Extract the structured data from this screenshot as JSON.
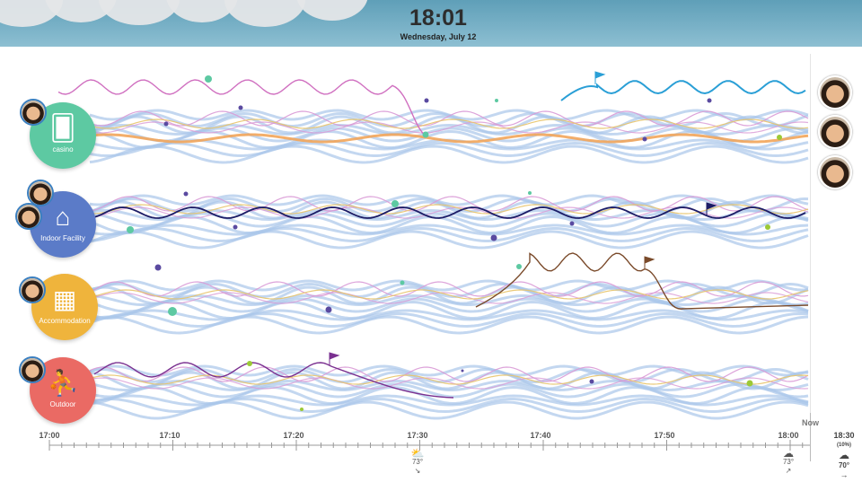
{
  "header": {
    "time": "18:01",
    "date": "Wednesday, July 12"
  },
  "categories": [
    {
      "label": "casino",
      "color": "#5dc9a2",
      "icon": "playing-card-icon"
    },
    {
      "label": "Indoor Facility",
      "color": "#5b7bc8",
      "icon": "house-icon"
    },
    {
      "label": "Accommodation",
      "color": "#efb43c",
      "icon": "building-icon"
    },
    {
      "label": "Outdoor",
      "color": "#ea6a64",
      "icon": "person-outdoor-icon"
    }
  ],
  "axis": {
    "ticks": [
      "17:00",
      "17:10",
      "17:20",
      "17:30",
      "17:40",
      "17:50",
      "18:00"
    ],
    "now_label": "Now"
  },
  "weather": [
    {
      "time": "17:30",
      "icon": "partly-sunny-icon",
      "temp": "73°",
      "wind": "↘"
    },
    {
      "time": "18:00",
      "icon": "cloud-icon",
      "temp": "73°",
      "wind": "↗"
    }
  ],
  "forecast": {
    "time": "18:30",
    "precip": "(10%)",
    "icon": "cloud-icon",
    "temp": "70°",
    "wind": "→"
  },
  "colors": {
    "band": "#a9c6ea",
    "pink": "#d99ad6",
    "yellow": "#e8c46a",
    "orange": "#f2a55a",
    "casino_line": "#d070c0",
    "blue_line": "#2a9fd6",
    "navy_line": "#1c1c66",
    "brown_line": "#7a4a2a",
    "purple_line": "#7a3090"
  }
}
